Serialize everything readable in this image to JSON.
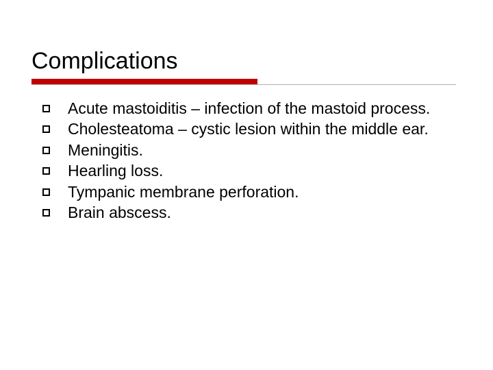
{
  "slide": {
    "title": "Complications",
    "title_fontsize": 34,
    "title_color": "#000000",
    "underline": {
      "red_width": 330,
      "red_height": 8,
      "red_color": "#c00000",
      "gray_width": 620,
      "gray_color": "#b0b0b0"
    },
    "background_color": "#ffffff",
    "body_fontsize": 23,
    "body_color": "#000000",
    "bullet_style": "hollow-square",
    "bullet_size": 11,
    "bullet_border": "#000000",
    "items": [
      "Acute mastoiditis – infection of the mastoid process.",
      "Cholesteatoma – cystic lesion within the middle ear.",
      "Meningitis.",
      "Hearling loss.",
      "Tympanic membrane perforation.",
      "Brain abscess."
    ]
  }
}
